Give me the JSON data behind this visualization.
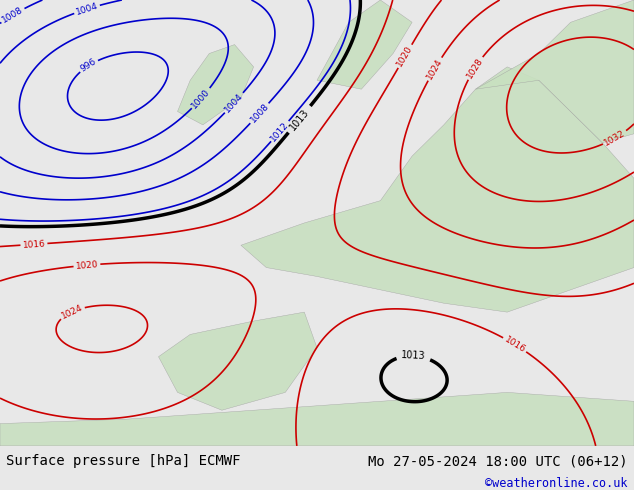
{
  "title_left": "Surface pressure [hPa] ECMWF",
  "title_right": "Mo 27-05-2024 18:00 UTC (06+12)",
  "credit": "©weatheronline.co.uk",
  "bg_color": "#e8e8e8",
  "map_bg": "#d8ecd8",
  "ocean_color": "#c8d8e8",
  "land_color": "#c8e0c0",
  "bottom_bar_color": "#e0e0e0",
  "bottom_text_color": "#000000",
  "credit_color": "#0000cc",
  "font_size_bottom": 10,
  "fig_width": 6.34,
  "fig_height": 4.9
}
